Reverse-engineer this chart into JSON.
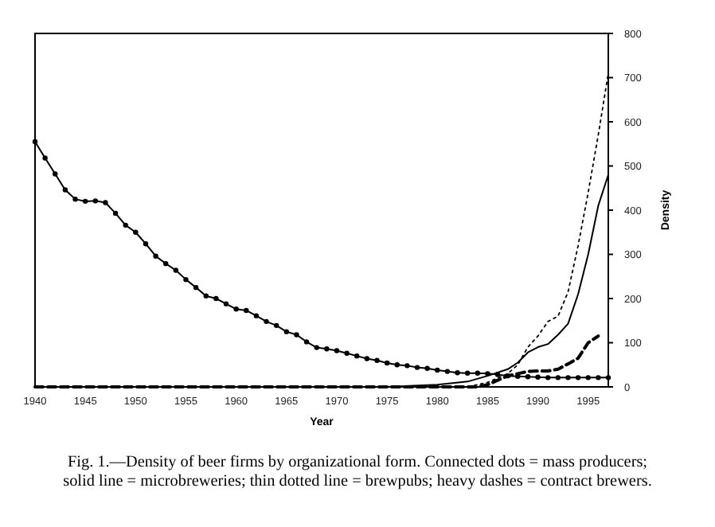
{
  "chart_data": {
    "type": "line",
    "xlabel": "Year",
    "ylabel": "Density",
    "xlim": [
      1940,
      1997
    ],
    "ylim": [
      0,
      800
    ],
    "xticks": [
      1940,
      1945,
      1950,
      1955,
      1960,
      1965,
      1970,
      1975,
      1980,
      1985,
      1990,
      1995
    ],
    "yticks": [
      0,
      100,
      200,
      300,
      400,
      500,
      600,
      700,
      800
    ],
    "grid": false,
    "annotations": [
      "Fig. 1.—Density of beer firms by organizational form. Connected dots = mass producers;",
      "solid line = microbreweries; thin dotted line = brewpubs; heavy dashes = contract brewers."
    ],
    "series": [
      {
        "color": "#000000",
        "marker": "circle",
        "line_style": "solid",
        "x": [
          1940,
          1941,
          1942,
          1943,
          1944,
          1945,
          1946,
          1947,
          1948,
          1949,
          1950,
          1951,
          1952,
          1953,
          1954,
          1955,
          1956,
          1957,
          1958,
          1959,
          1960,
          1961,
          1962,
          1963,
          1964,
          1965,
          1966,
          1967,
          1968,
          1969,
          1970,
          1971,
          1972,
          1973,
          1974,
          1975,
          1976,
          1977,
          1978,
          1979,
          1980,
          1981,
          1982,
          1983,
          1984,
          1985,
          1986,
          1987,
          1988,
          1989,
          1990,
          1991,
          1992,
          1993,
          1994,
          1995,
          1996,
          1997
        ],
        "values": [
          555,
          518,
          482,
          446,
          425,
          420,
          421,
          417,
          393,
          366,
          350,
          324,
          296,
          279,
          264,
          243,
          225,
          206,
          200,
          188,
          176,
          173,
          161,
          148,
          139,
          125,
          118,
          102,
          89,
          86,
          82,
          76,
          70,
          64,
          60,
          54,
          50,
          48,
          44,
          42,
          38,
          35,
          32,
          31,
          31,
          30,
          28,
          25,
          24,
          23,
          22,
          21,
          21,
          21,
          21,
          21,
          21,
          21
        ]
      },
      {
        "color": "#000000",
        "marker": "none",
        "line_style": "solid",
        "x": [
          1940,
          1975,
          1980,
          1983,
          1985,
          1987,
          1988,
          1989,
          1990,
          1991,
          1992,
          1993,
          1994,
          1995,
          1996,
          1997
        ],
        "values": [
          0,
          0,
          5,
          12,
          25,
          40,
          55,
          78,
          90,
          97,
          118,
          143,
          210,
          300,
          410,
          480
        ]
      },
      {
        "color": "#000000",
        "marker": "none",
        "line_style": "dotted",
        "x": [
          1940,
          1983,
          1985,
          1987,
          1988,
          1989,
          1990,
          1991,
          1992,
          1993,
          1994,
          1995,
          1996,
          1997
        ],
        "values": [
          0,
          0,
          10,
          30,
          50,
          90,
          115,
          148,
          160,
          215,
          320,
          440,
          570,
          710
        ]
      },
      {
        "color": "#000000",
        "marker": "none",
        "line_style": "dashed",
        "x": [
          1940,
          1984,
          1985,
          1986,
          1987,
          1988,
          1989,
          1990,
          1991,
          1992,
          1993,
          1994,
          1995,
          1996
        ],
        "values": [
          0,
          0,
          5,
          15,
          25,
          30,
          35,
          36,
          36,
          40,
          52,
          65,
          100,
          115
        ]
      }
    ]
  }
}
